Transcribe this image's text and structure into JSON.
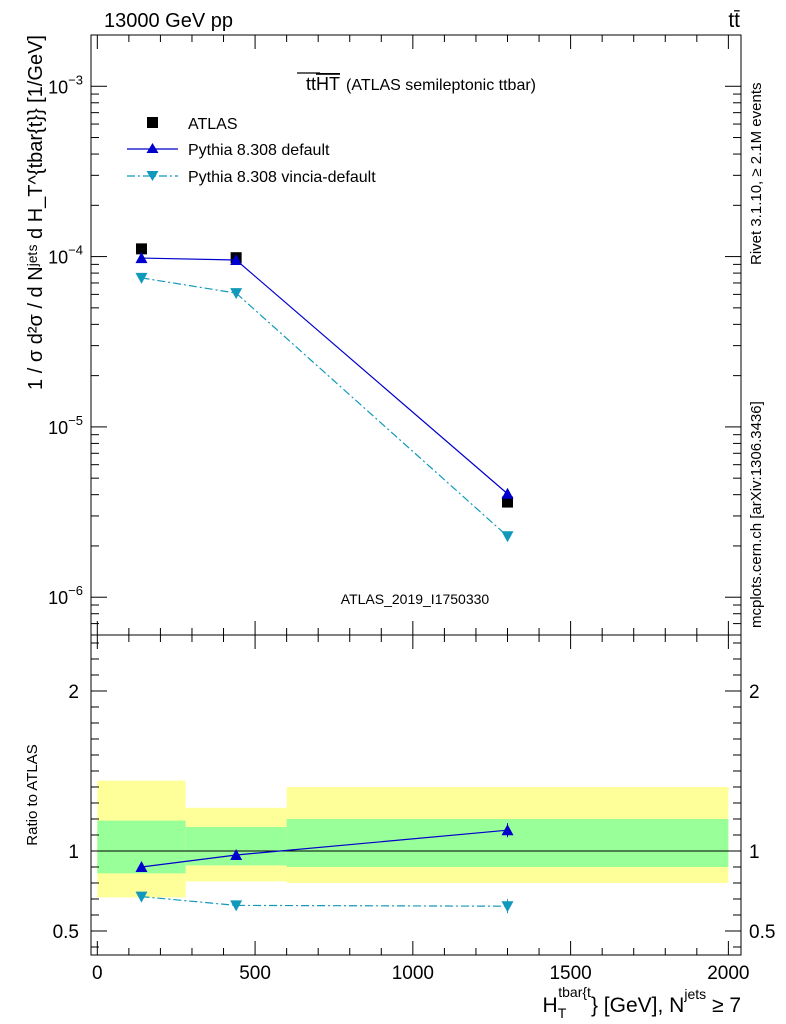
{
  "header": {
    "left": "13000 GeV pp",
    "right": "tt̄"
  },
  "title": {
    "main": "tt",
    "overlined": "HT",
    "sub": "(ATLAS semileptonic ttbar)"
  },
  "side_labels": {
    "rivet": "Rivet 3.1.10, ≥ 2.1M events",
    "mcplots": "mcplots.cern.ch [arXiv:1306.3436]"
  },
  "watermark": "ATLAS_2019_I1750330",
  "chart_data": [
    {
      "type": "line",
      "panel": "main",
      "yscale": "log",
      "ylim": [
        6e-07,
        0.002
      ],
      "xlim": [
        -20,
        2040
      ],
      "ylabel": "1 / σ d²σ / d Nʲᵉᵗˢ d H_T^{tbar{t}} [1/GeV]",
      "y_ticks": [
        {
          "value": 1e-06,
          "base": "10",
          "exp": "−6"
        },
        {
          "value": 1e-05,
          "base": "10",
          "exp": "−5"
        },
        {
          "value": 0.0001,
          "base": "10",
          "exp": "−4"
        },
        {
          "value": 0.001,
          "base": "10",
          "exp": "−3"
        }
      ],
      "legend": {
        "position": "top-left",
        "entries": [
          "ATLAS",
          "Pythia 8.308 default",
          "Pythia 8.308 vincia-default"
        ]
      },
      "series": [
        {
          "name": "ATLAS",
          "marker": "square",
          "color": "#000000",
          "x": [
            140,
            440,
            1300
          ],
          "y": [
            0.000111,
            9.85e-05,
            3.62e-06
          ]
        },
        {
          "name": "Pythia 8.308 default",
          "marker": "triangle-up",
          "color": "#0000cc",
          "linestyle": "solid",
          "x": [
            140,
            440,
            1300
          ],
          "y": [
            9.8e-05,
            9.55e-05,
            4.05e-06
          ]
        },
        {
          "name": "Pythia 8.308 vincia-default",
          "marker": "triangle-down",
          "color": "#1199bb",
          "linestyle": "dash-dot",
          "x": [
            140,
            440,
            1300
          ],
          "y": [
            7.5e-05,
            6.1e-05,
            2.28e-06
          ]
        }
      ]
    },
    {
      "type": "line",
      "panel": "ratio",
      "ylabel": "Ratio to ATLAS",
      "xlabel": "H_T^{tbar{t}} [GeV], N^{jets} ≥ 7",
      "xlim": [
        -20,
        2040
      ],
      "ylim": [
        0.35,
        2.35
      ],
      "x_ticks": [
        "0",
        "500",
        "1000",
        "1500",
        "2000"
      ],
      "y_ticks": [
        "0.5",
        "1",
        "2"
      ],
      "reference": 1,
      "bands": [
        {
          "x0": 0,
          "x1": 280,
          "inner": [
            0.86,
            1.19
          ],
          "outer": [
            0.71,
            1.44
          ]
        },
        {
          "x0": 280,
          "x1": 600,
          "inner": [
            0.91,
            1.15
          ],
          "outer": [
            0.81,
            1.27
          ]
        },
        {
          "x0": 600,
          "x1": 2000,
          "inner": [
            0.9,
            1.2
          ],
          "outer": [
            0.8,
            1.4
          ]
        }
      ],
      "series": [
        {
          "name": "Pythia 8.308 default",
          "marker": "triangle-up",
          "color": "#0000cc",
          "x": [
            140,
            440,
            1300
          ],
          "y": [
            0.9,
            0.975,
            1.13
          ]
        },
        {
          "name": "Pythia 8.308 vincia-default",
          "marker": "triangle-down",
          "color": "#1199bb",
          "x": [
            140,
            440,
            1300
          ],
          "y": [
            0.715,
            0.66,
            0.655
          ]
        }
      ]
    }
  ],
  "colors": {
    "band_inner": "#99ff99",
    "band_outer": "#ffff99",
    "watermark": "#999999",
    "side_labels": "#808080"
  }
}
